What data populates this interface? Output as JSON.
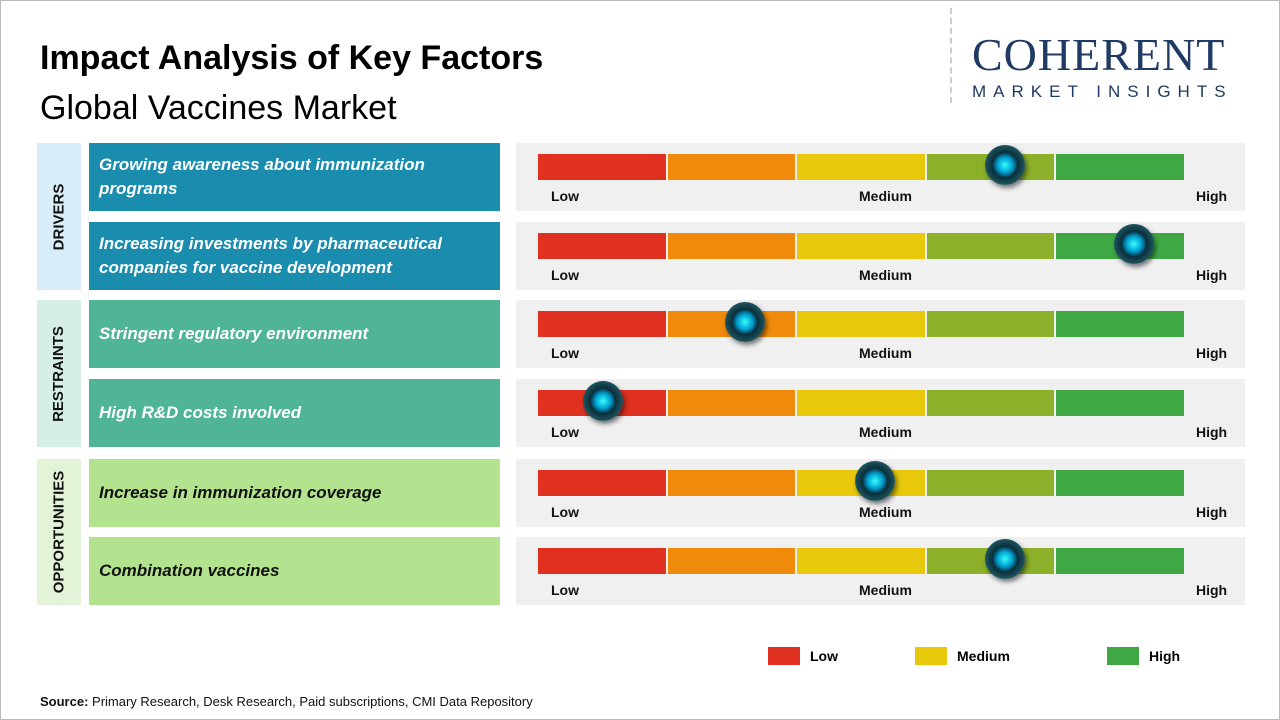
{
  "title": "Impact Analysis of Key Factors",
  "subtitle": "Global Vaccines Market",
  "logo": {
    "main": "COHERENT",
    "sub": "MARKET INSIGHTS"
  },
  "scale_labels": {
    "low": "Low",
    "medium": "Medium",
    "high": "High"
  },
  "segment_colors": [
    "#e03020",
    "#ef8a0a",
    "#e8c80a",
    "#8db02a",
    "#3fa845"
  ],
  "categories": [
    {
      "label": "DRIVERS",
      "bg": "#d7eef8",
      "factor_bg": "#1a8cae",
      "text_color": "#ffffff"
    },
    {
      "label": "RESTRAINTS",
      "bg": "#d6efe6",
      "factor_bg": "#4fb596",
      "text_color": "#ffffff"
    },
    {
      "label": "OPPORTUNITIES",
      "bg": "#e3f3d7",
      "factor_bg": "#b4e38f",
      "text_color": "#111111"
    }
  ],
  "chart_data": {
    "type": "bar",
    "scale": [
      "Low",
      "Medium",
      "High"
    ],
    "xlim": [
      0,
      5
    ],
    "factors": [
      {
        "category": "DRIVERS",
        "label": "Growing awareness about immunization programs",
        "impact": 3.6
      },
      {
        "category": "DRIVERS",
        "label": "Increasing investments by pharmaceutical companies for vaccine development",
        "impact": 4.6
      },
      {
        "category": "RESTRAINTS",
        "label": "Stringent regulatory environment",
        "impact": 1.6
      },
      {
        "category": "RESTRAINTS",
        "label": "High R&D costs involved",
        "impact": 0.5
      },
      {
        "category": "OPPORTUNITIES",
        "label": "Increase in immunization coverage",
        "impact": 2.6
      },
      {
        "category": "OPPORTUNITIES",
        "label": "Combination vaccines",
        "impact": 3.6
      }
    ]
  },
  "legend": [
    {
      "label": "Low",
      "color": "#e03020"
    },
    {
      "label": "Medium",
      "color": "#e8c80a"
    },
    {
      "label": "High",
      "color": "#3fa845"
    }
  ],
  "source": {
    "label": "Source:",
    "text": " Primary Research, Desk Research, Paid subscriptions, CMI Data Repository"
  }
}
